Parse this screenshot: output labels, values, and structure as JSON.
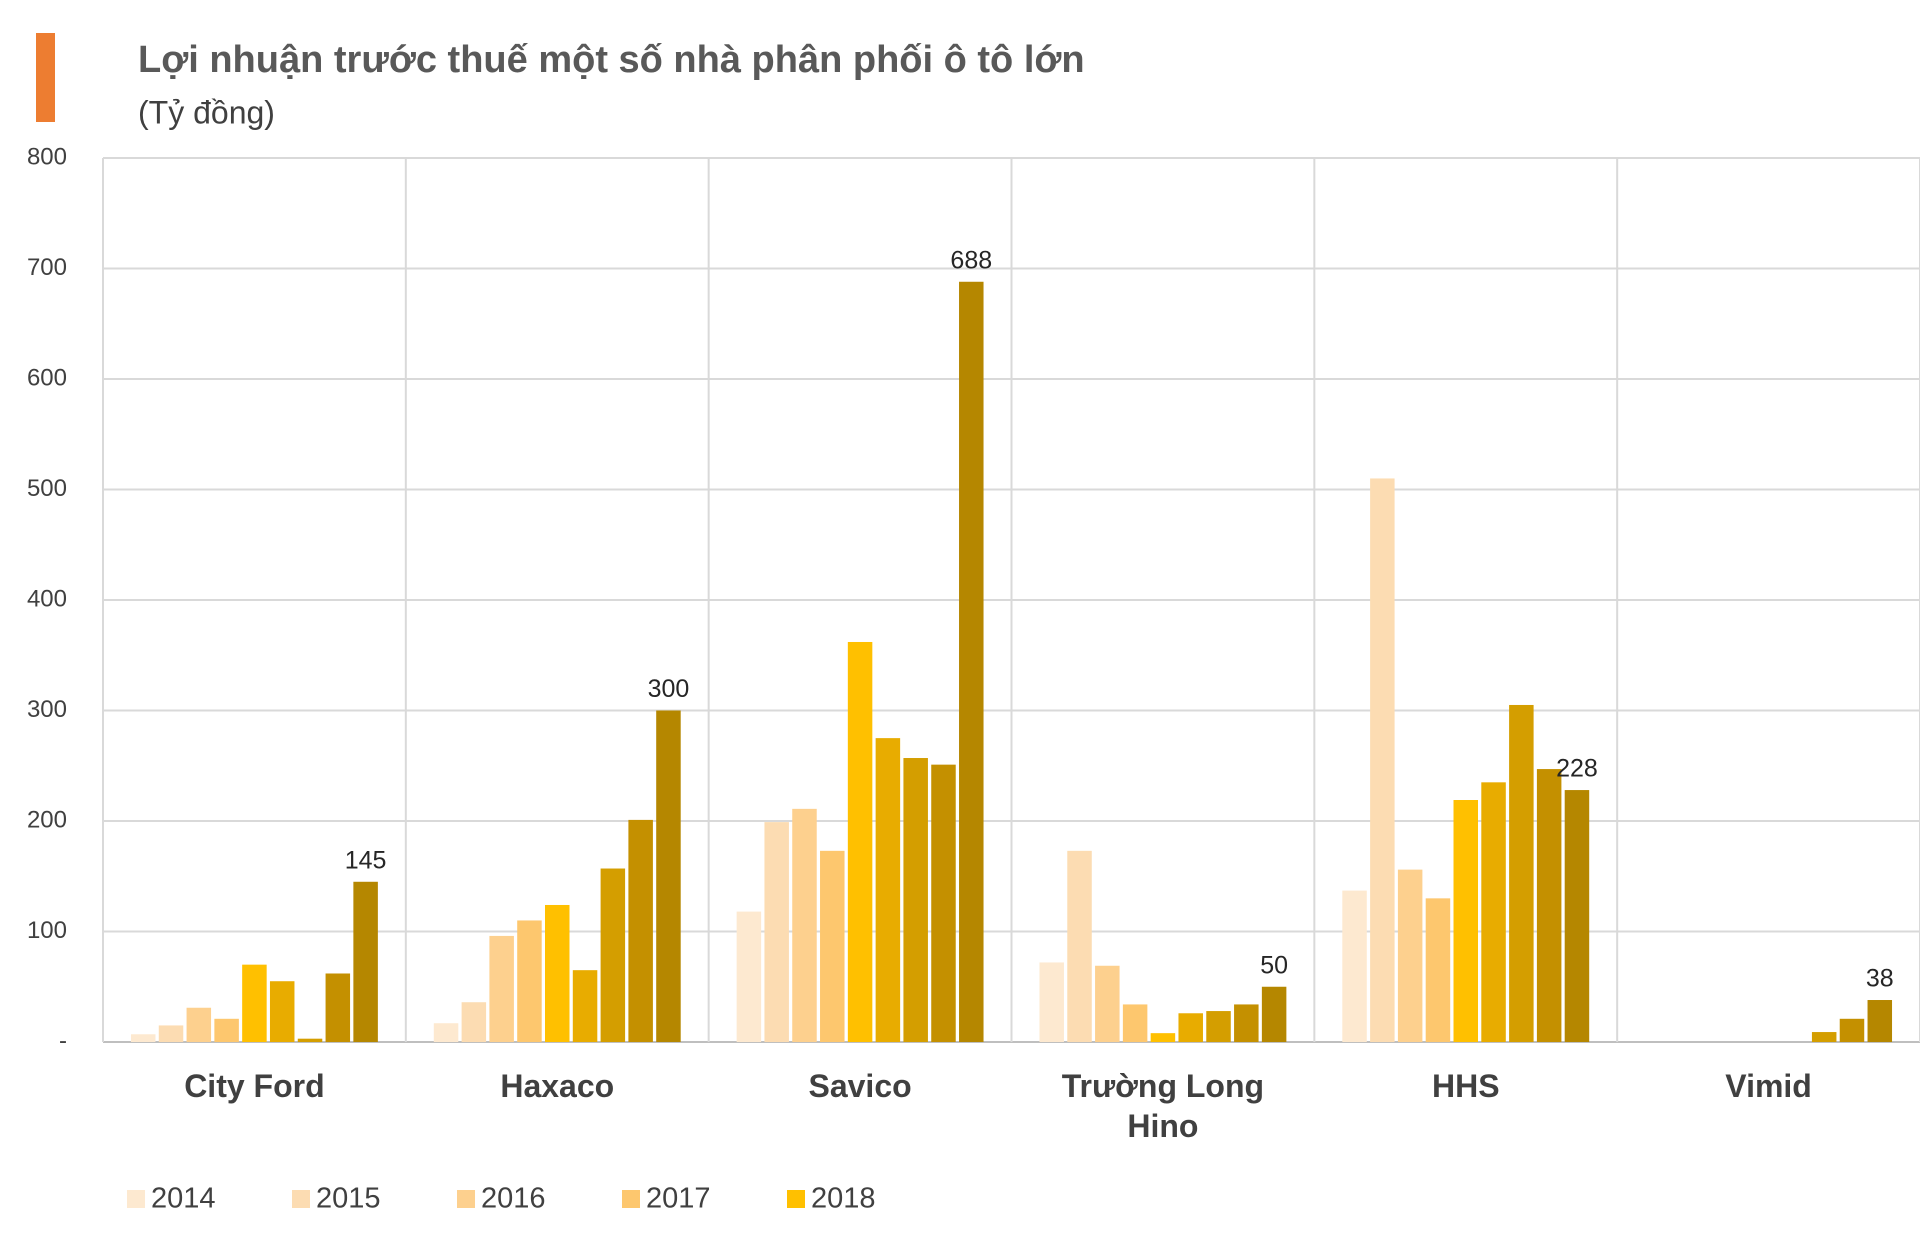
{
  "chart_data": {
    "type": "bar",
    "title": "Lợi nhuận trước thuế một số nhà phân phối ô tô lớn",
    "subtitle": "(Tỷ đồng)",
    "categories": [
      "City Ford",
      "Haxaco",
      "Savico",
      "Trường Long Hino",
      "HHS",
      "Vimid"
    ],
    "series": [
      {
        "name": "2014",
        "color": "#fde9d0",
        "values": [
          7,
          17,
          118,
          72,
          137,
          null
        ]
      },
      {
        "name": "2015",
        "color": "#fcdcb2",
        "values": [
          15,
          36,
          199,
          173,
          510,
          null
        ]
      },
      {
        "name": "2016",
        "color": "#fdd08e",
        "values": [
          31,
          96,
          211,
          69,
          156,
          null
        ]
      },
      {
        "name": "2017",
        "color": "#fdc76e",
        "values": [
          21,
          110,
          173,
          34,
          130,
          null
        ]
      },
      {
        "name": "2018",
        "color": "#ffc000",
        "values": [
          70,
          124,
          362,
          8,
          219,
          null
        ]
      },
      {
        "color": "#e8ac00",
        "values": [
          55,
          65,
          275,
          26,
          235,
          null
        ]
      },
      {
        "color": "#d49e00",
        "values": [
          3,
          157,
          257,
          28,
          305,
          9
        ]
      },
      {
        "color": "#c49000",
        "values": [
          62,
          201,
          251,
          34,
          247,
          21
        ]
      },
      {
        "color": "#b58700",
        "values": [
          145,
          300,
          688,
          50,
          228,
          38
        ],
        "show_labels": true
      }
    ],
    "ylim": [
      0,
      800
    ],
    "yticks": [
      {
        "value": 0,
        "label": "-"
      },
      100,
      200,
      300,
      400,
      500,
      600,
      700,
      800
    ],
    "grid": true
  }
}
